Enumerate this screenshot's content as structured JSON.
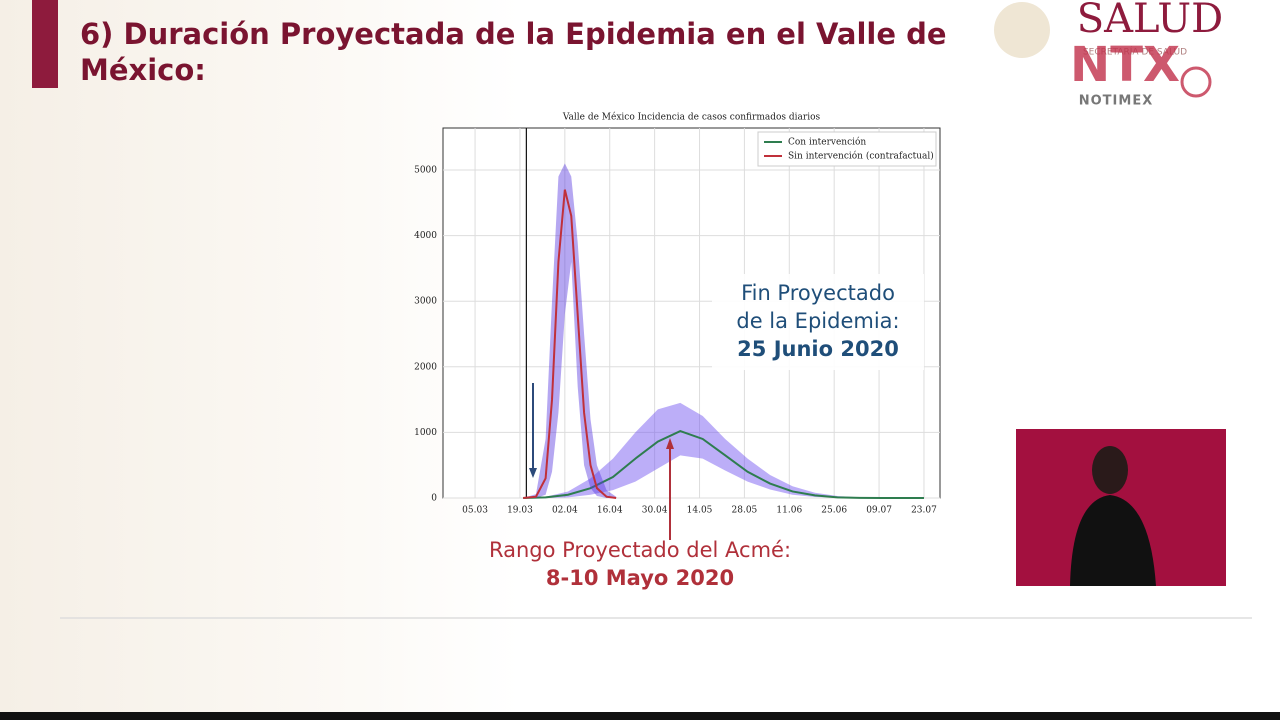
{
  "slide": {
    "title": "6) Duración Proyectada de la Epidemia en el Valle de México:",
    "logo": {
      "brand": "SALUD",
      "agency": "SECRETARÍA DE SALUD",
      "overlay": "NTX",
      "overlay_name": "NOTIMEX"
    }
  },
  "chart_data": {
    "type": "line",
    "title": "Valle de México Incidencia de casos confirmados diarios",
    "xlim": [
      "24.02",
      "28.07"
    ],
    "xticks": [
      "05.03",
      "19.03",
      "02.04",
      "16.04",
      "30.04",
      "14.05",
      "28.05",
      "11.06",
      "25.06",
      "09.07",
      "23.07"
    ],
    "ylim": [
      0,
      5640
    ],
    "yticks": [
      0,
      1000,
      2000,
      3000,
      4000,
      5000
    ],
    "grid": true,
    "legend": "upper right",
    "vline_x": "21.03",
    "series": [
      {
        "name": "Con intervención",
        "color": "#2e7d4f",
        "band_color": "#6a4cf0",
        "x": [
          "20.03",
          "27.03",
          "03.04",
          "10.04",
          "17.04",
          "24.04",
          "01.05",
          "08.05",
          "15.05",
          "22.05",
          "29.05",
          "05.06",
          "12.06",
          "19.06",
          "26.06",
          "03.07",
          "10.07",
          "23.07"
        ],
        "values": [
          0,
          10,
          50,
          150,
          320,
          600,
          860,
          1020,
          900,
          650,
          400,
          220,
          100,
          40,
          10,
          2,
          0,
          0
        ],
        "upper": [
          0,
          20,
          100,
          300,
          600,
          1000,
          1350,
          1450,
          1250,
          900,
          600,
          350,
          180,
          80,
          30,
          10,
          2,
          0
        ],
        "lower": [
          0,
          0,
          10,
          50,
          120,
          250,
          450,
          650,
          600,
          420,
          250,
          130,
          50,
          15,
          5,
          0,
          0,
          0
        ]
      },
      {
        "name": "Sin intervención (contrafactual)",
        "color": "#c0303a",
        "band_color": "#5a3ce0",
        "x": [
          "20.03",
          "24.03",
          "27.03",
          "29.03",
          "31.03",
          "02.04",
          "04.04",
          "06.04",
          "08.04",
          "10.04",
          "12.04",
          "15.04",
          "18.04"
        ],
        "values": [
          0,
          20,
          300,
          1500,
          3600,
          4700,
          4300,
          2800,
          1300,
          500,
          150,
          20,
          0
        ],
        "upper": [
          0,
          60,
          900,
          3000,
          4900,
          5100,
          4900,
          3900,
          2500,
          1200,
          500,
          120,
          20
        ],
        "lower": [
          0,
          0,
          50,
          400,
          1300,
          2800,
          3600,
          1700,
          500,
          150,
          30,
          0,
          0
        ]
      }
    ],
    "annotations": [
      {
        "lines": [
          "Fin Proyectado",
          "de la Epidemia:"
        ],
        "emphasis": "25 Junio 2020",
        "color": "#1f4e79"
      },
      {
        "lines": [
          "Rango Proyectado del Acmé:"
        ],
        "emphasis": "8-10 Mayo 2020",
        "color": "#b0303a"
      }
    ]
  }
}
